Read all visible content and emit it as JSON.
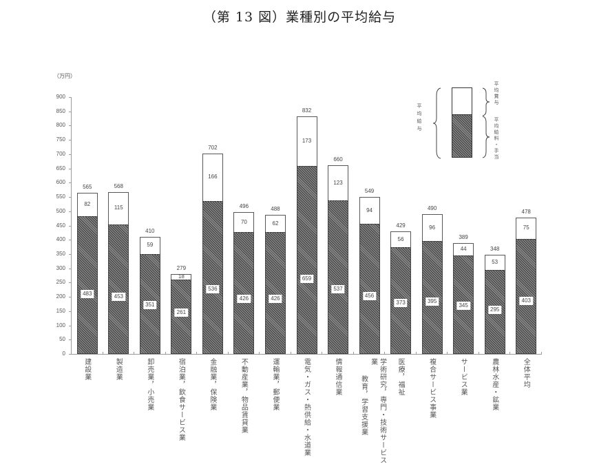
{
  "title": "（第 13 図）業種別の平均給与",
  "unit_label": "（万円）",
  "legend": {
    "total_label": "平均給与",
    "bonus_label": "平均賞与",
    "base_label": "平均給料・手当"
  },
  "chart_data": {
    "type": "bar",
    "stacked": true,
    "title": "（第 13 図）業種別の平均給与",
    "xlabel": "",
    "ylabel": "（万円）",
    "ylim": [
      0,
      900
    ],
    "yticks": [
      0,
      50,
      100,
      150,
      200,
      250,
      300,
      350,
      400,
      450,
      500,
      550,
      600,
      650,
      700,
      750,
      800,
      850,
      900
    ],
    "grid": false,
    "legend_position": "upper right",
    "categories": [
      "建設業",
      "製造業",
      "卸売業，小売業",
      "宿泊業，飲食サービス業",
      "金融業，保険業",
      "不動産業，物品賃貸業",
      "運輸業，郵便業",
      "電気・ガス・熱供給・水道業",
      "情報通信業",
      "学術研究，専門・技術サービス業 教育，学習支援業",
      "医療，福祉",
      "複合サービス事業",
      "サービス業",
      "農林水産・鉱業",
      "全体平均"
    ],
    "series": [
      {
        "name": "平均給料・手当",
        "values": [
          483,
          453,
          351,
          261,
          536,
          426,
          426,
          659,
          537,
          456,
          373,
          395,
          345,
          295,
          403
        ]
      },
      {
        "name": "平均賞与",
        "values": [
          82,
          115,
          59,
          18,
          166,
          70,
          62,
          173,
          123,
          94,
          56,
          96,
          44,
          53,
          75
        ]
      }
    ],
    "totals": [
      565,
      568,
      410,
      279,
      702,
      496,
      488,
      832,
      660,
      549,
      429,
      490,
      389,
      348,
      478
    ],
    "total_series_name": "平均給与"
  },
  "bars": [
    {
      "label_lines": [
        "建設業"
      ],
      "total": "565",
      "bonus": "82",
      "base": "483"
    },
    {
      "label_lines": [
        "製造業"
      ],
      "total": "568",
      "bonus": "115",
      "base": "453"
    },
    {
      "label_lines": [
        "卸売業，小売業"
      ],
      "total": "410",
      "bonus": "59",
      "base": "351"
    },
    {
      "label_lines": [
        "宿泊業，飲食サービス業"
      ],
      "total": "279",
      "bonus": "18",
      "base": "261"
    },
    {
      "label_lines": [
        "金融業，保険業"
      ],
      "total": "702",
      "bonus": "166",
      "base": "536"
    },
    {
      "label_lines": [
        "不動産業，物品賃貸業"
      ],
      "total": "496",
      "bonus": "70",
      "base": "426"
    },
    {
      "label_lines": [
        "運輸業，郵便業"
      ],
      "total": "488",
      "bonus": "62",
      "base": "426"
    },
    {
      "label_lines": [
        "電気・ガス・熱供給・水道業"
      ],
      "total": "832",
      "bonus": "173",
      "base": "659"
    },
    {
      "label_lines": [
        "情報通信業"
      ],
      "total": "660",
      "bonus": "123",
      "base": "537"
    },
    {
      "label_lines": [
        "学術研究，専門・技術サービス業",
        "教育，学習支援業"
      ],
      "total": "549",
      "bonus": "94",
      "base": "456"
    },
    {
      "label_lines": [
        "医療，福祉"
      ],
      "total": "429",
      "bonus": "56",
      "base": "373"
    },
    {
      "label_lines": [
        "複合サービス事業"
      ],
      "total": "490",
      "bonus": "96",
      "base": "395"
    },
    {
      "label_lines": [
        "サービス業"
      ],
      "total": "389",
      "bonus": "44",
      "base": "345"
    },
    {
      "label_lines": [
        "農林水産・鉱業"
      ],
      "total": "348",
      "bonus": "53",
      "base": "295"
    },
    {
      "label_lines": [
        "全体平均"
      ],
      "total": "478",
      "bonus": "75",
      "base": "403"
    }
  ]
}
